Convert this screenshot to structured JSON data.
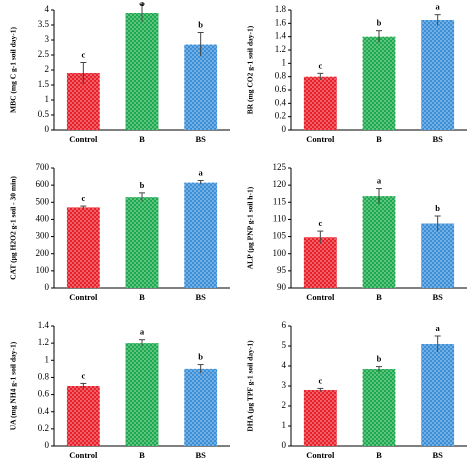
{
  "chart_data": [
    {
      "type": "bar",
      "y_label": "MBC (mg C g-1 soil day-1)",
      "categories": [
        "Control",
        "B",
        "BS"
      ],
      "values": [
        1.9,
        3.9,
        2.85
      ],
      "errors": [
        0.35,
        0.3,
        0.4
      ],
      "annotations": [
        "c",
        "a",
        "b"
      ],
      "colors": [
        "#e8202a",
        "#1daa4e",
        "#3b8fd6"
      ],
      "ylim": [
        0,
        4
      ],
      "yticks": [
        0,
        0.5,
        1,
        1.5,
        2,
        2.5,
        3,
        3.5,
        4
      ]
    },
    {
      "type": "bar",
      "y_label": "BR (mg CO2 g-1 soil day-1)",
      "categories": [
        "Control",
        "B",
        "BS"
      ],
      "values": [
        0.8,
        1.4,
        1.65
      ],
      "errors": [
        0.05,
        0.09,
        0.08
      ],
      "annotations": [
        "c",
        "b",
        "a"
      ],
      "colors": [
        "#e8202a",
        "#1daa4e",
        "#3b8fd6"
      ],
      "ylim": [
        0,
        1.8
      ],
      "yticks": [
        0,
        0.2,
        0.4,
        0.6,
        0.8,
        1,
        1.2,
        1.4,
        1.6,
        1.8
      ]
    },
    {
      "type": "bar",
      "y_label": "CAT (µg H2O2 g-1 soil - 30 min)",
      "categories": [
        "Control",
        "B",
        "BS"
      ],
      "values": [
        470,
        530,
        615
      ],
      "errors": [
        8,
        25,
        12
      ],
      "annotations": [
        "c",
        "b",
        "a"
      ],
      "colors": [
        "#e8202a",
        "#1daa4e",
        "#3b8fd6"
      ],
      "ylim": [
        0,
        700
      ],
      "yticks": [
        0,
        100,
        200,
        300,
        400,
        500,
        600,
        700
      ]
    },
    {
      "type": "bar",
      "y_label": "ALP (µg PNP g-1 soil h-1)",
      "categories": [
        "Control",
        "B",
        "BS"
      ],
      "values": [
        104.8,
        116.8,
        108.8
      ],
      "errors": [
        1.8,
        2.2,
        2.2
      ],
      "annotations": [
        "c",
        "a",
        "b"
      ],
      "colors": [
        "#e8202a",
        "#1daa4e",
        "#3b8fd6"
      ],
      "ylim": [
        90,
        125
      ],
      "yticks": [
        90,
        95,
        100,
        105,
        110,
        115,
        120,
        125
      ]
    },
    {
      "type": "bar",
      "y_label": "UA (mg NH4 g-1 soil day-1)",
      "categories": [
        "Control",
        "B",
        "BS"
      ],
      "values": [
        0.7,
        1.2,
        0.9
      ],
      "errors": [
        0.03,
        0.04,
        0.05
      ],
      "annotations": [
        "c",
        "a",
        "b"
      ],
      "colors": [
        "#e8202a",
        "#1daa4e",
        "#3b8fd6"
      ],
      "ylim": [
        0,
        1.4
      ],
      "yticks": [
        0,
        0.2,
        0.4,
        0.6,
        0.8,
        1,
        1.2,
        1.4
      ]
    },
    {
      "type": "bar",
      "y_label": "DHA (µg TPF g-1 soil day-1)",
      "categories": [
        "Control",
        "B",
        "BS"
      ],
      "values": [
        2.8,
        3.85,
        5.1
      ],
      "errors": [
        0.08,
        0.12,
        0.4
      ],
      "annotations": [
        "c",
        "b",
        "a"
      ],
      "colors": [
        "#e8202a",
        "#1daa4e",
        "#3b8fd6"
      ],
      "ylim": [
        0,
        6
      ],
      "yticks": [
        0,
        1,
        2,
        3,
        4,
        5,
        6
      ]
    }
  ]
}
